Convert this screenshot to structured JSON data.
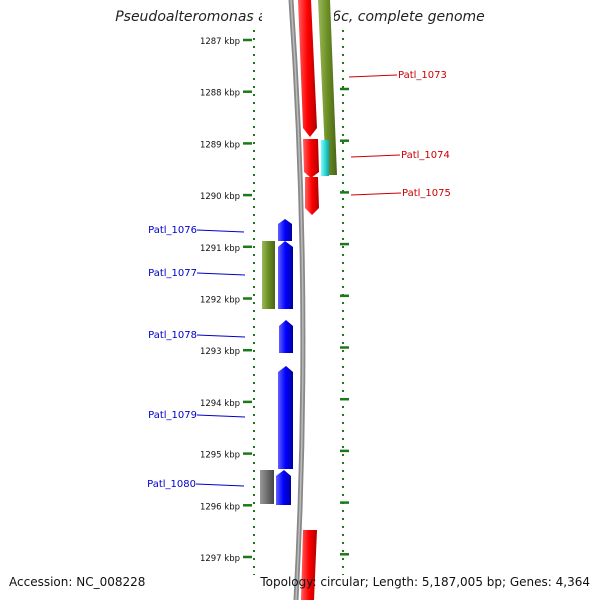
{
  "title": "Pseudoalteromonas atlantica T6c, complete genome",
  "accession": "Accession: NC_008228",
  "topology": "Topology: circular; Length: 5,187,005 bp; Genes: 4,364",
  "ruler_ticks": [
    "1287 kbp",
    "1288 kbp",
    "1289 kbp",
    "1290 kbp",
    "1291 kbp",
    "1292 kbp",
    "1293 kbp",
    "1294 kbp",
    "1295 kbp",
    "1296 kbp",
    "1297 kbp"
  ],
  "genes_right": [
    {
      "label": "Patl_1073",
      "color": "#cc0000"
    },
    {
      "label": "Patl_1074",
      "color": "#cc0000"
    },
    {
      "label": "Patl_1075",
      "color": "#cc0000"
    }
  ],
  "genes_left": [
    {
      "label": "Patl_1076",
      "color": "#0000cc"
    },
    {
      "label": "Patl_1077",
      "color": "#0000cc"
    },
    {
      "label": "Patl_1078",
      "color": "#0000cc"
    },
    {
      "label": "Patl_1079",
      "color": "#0000cc"
    },
    {
      "label": "Patl_1080",
      "color": "#0000cc"
    }
  ],
  "colors": {
    "forward_strand": "#ff0000",
    "reverse_strand": "#0000ff",
    "cog_green": "#6b8e23",
    "cog_cyan": "#00cccc",
    "cog_gray": "#666666",
    "ruler_green": "#1a7a1a",
    "backbone": "#888888"
  }
}
